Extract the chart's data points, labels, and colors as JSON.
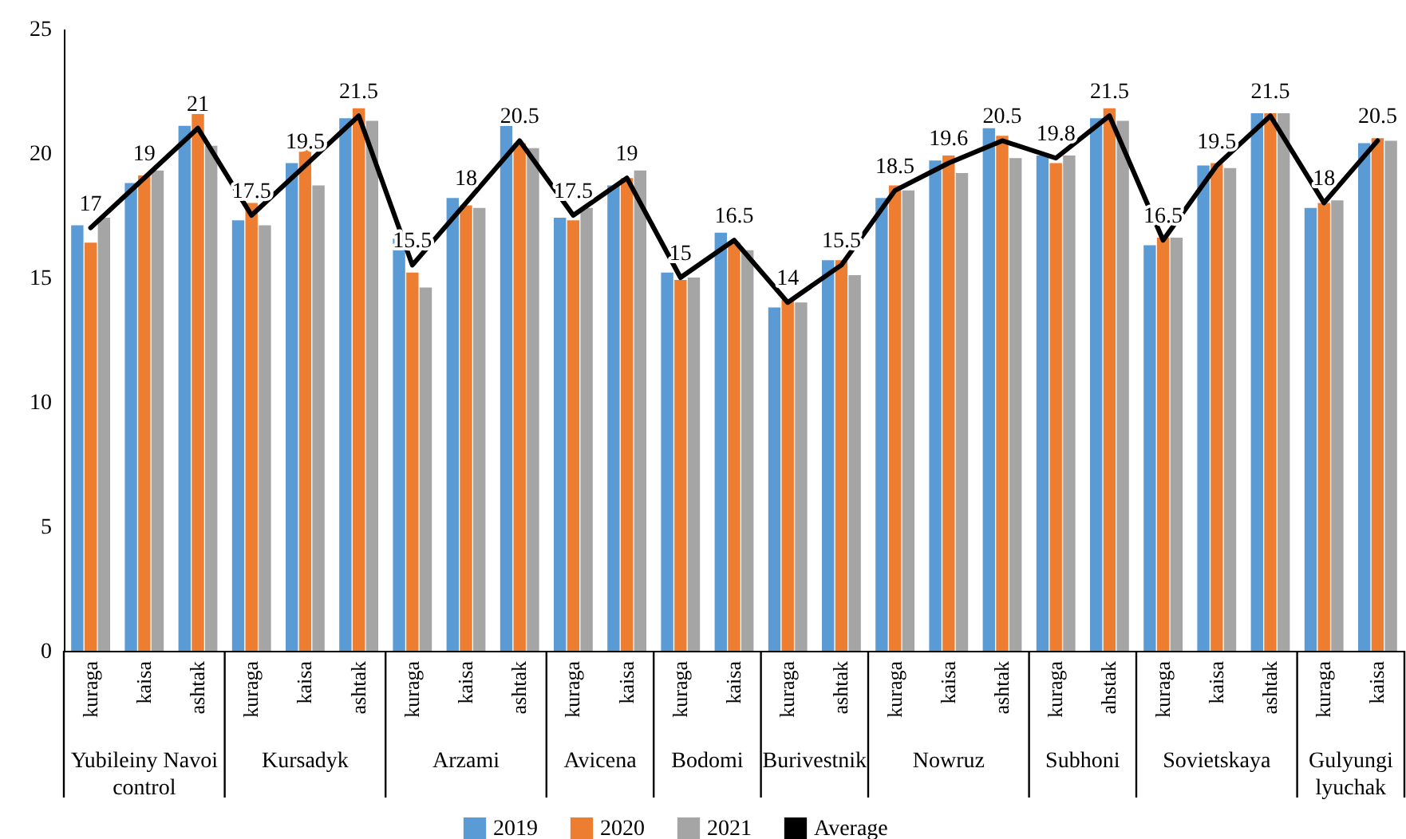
{
  "chart_data": {
    "type": "bar",
    "categories": [
      "kuraga",
      "kaisa",
      "ashtak",
      "kuraga",
      "kaisa",
      "ashtak",
      "kuraga",
      "kaisa",
      "ashtak",
      "kuraga",
      "kaisa",
      "kuraga",
      "kaisa",
      "kuraga",
      "ashtak",
      "kuraga",
      "kaisa",
      "ashtak",
      "kuraga",
      "ahstak",
      "kuraga",
      "kaisa",
      "ashtak",
      "kuraga",
      "kaisa"
    ],
    "series": [
      {
        "name": "2019",
        "color": "#5b9bd5",
        "values": [
          17.1,
          18.8,
          21.1,
          17.3,
          19.6,
          21.4,
          16.6,
          18.2,
          21.1,
          17.4,
          18.7,
          15.2,
          16.8,
          13.8,
          15.7,
          18.2,
          19.7,
          21.0,
          19.9,
          21.4,
          16.3,
          19.5,
          21.6,
          17.8,
          20.4
        ]
      },
      {
        "name": "2020",
        "color": "#ed7d31",
        "values": [
          16.4,
          19.1,
          21.6,
          18.0,
          20.2,
          21.8,
          15.2,
          17.9,
          20.4,
          17.3,
          19.0,
          14.9,
          16.4,
          14.1,
          15.7,
          18.7,
          19.9,
          20.7,
          19.6,
          21.8,
          16.6,
          19.6,
          21.6,
          18.0,
          20.6
        ]
      },
      {
        "name": "2021",
        "color": "#a5a5a5",
        "values": [
          17.4,
          19.3,
          20.3,
          17.1,
          18.7,
          21.3,
          14.6,
          17.8,
          20.2,
          17.8,
          19.3,
          15.0,
          16.1,
          14.0,
          15.1,
          18.5,
          19.2,
          19.8,
          19.9,
          21.3,
          16.6,
          19.4,
          21.6,
          18.1,
          20.5
        ]
      },
      {
        "name": "Average",
        "type": "line",
        "color": "#000000",
        "values": [
          17,
          19,
          21,
          17.5,
          19.5,
          21.5,
          15.5,
          18,
          20.5,
          17.5,
          19,
          15,
          16.5,
          14,
          15.5,
          18.5,
          19.6,
          20.5,
          19.8,
          21.5,
          16.5,
          19.5,
          21.5,
          18,
          20.5
        ],
        "value_labels": [
          "17",
          "19",
          "21",
          "17.5",
          "19.5",
          "21.5",
          "15.5",
          "18",
          "20.5",
          "17.5",
          "19",
          "15",
          "16.5",
          "14",
          "15.5",
          "18.5",
          "19.6",
          "20.5",
          "19.8",
          "21.5",
          "16.5",
          "19.5",
          "21.5",
          "18",
          "20.5"
        ]
      }
    ],
    "annotations": [
      "Yubileiny Navoi control",
      "Kursadyk",
      "Arzami",
      "Avicena",
      "Bodomi",
      "Burivestnik",
      "Nowruz",
      "Subhoni",
      "Sovietskaya",
      "Gulyungi lyuchak"
    ],
    "ylim": [
      0,
      25
    ],
    "yticks": [
      0,
      5,
      10,
      15,
      20,
      25
    ],
    "grid": false,
    "legend": "bottom"
  }
}
